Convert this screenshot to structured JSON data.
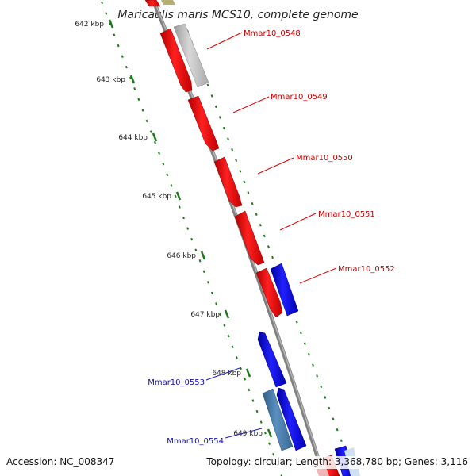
{
  "title": "Maricaulis maris MCS10, complete genome",
  "kbp_ticks": [
    "642 kbp",
    "643 kbp",
    "644 kbp",
    "645 kbp",
    "646 kbp",
    "647 kbp",
    "648 kbp",
    "649 kbp"
  ],
  "genes": [
    {
      "label": "Mmar10_0548",
      "strand": "+",
      "color": "#ff0000"
    },
    {
      "label": "Mmar10_0549",
      "strand": "+",
      "color": "#ff0000"
    },
    {
      "label": "Mmar10_0550",
      "strand": "+",
      "color": "#ff0000"
    },
    {
      "label": "Mmar10_0551",
      "strand": "+",
      "color": "#ff0000"
    },
    {
      "label": "Mmar10_0552",
      "strand": "+",
      "color": "#ff0000"
    },
    {
      "label": "Mmar10_0553",
      "strand": "-",
      "color": "#0000ff"
    },
    {
      "label": "Mmar10_0554",
      "strand": "-",
      "color": "#0000ff"
    }
  ],
  "colors": {
    "forward_cds": "#ff0000",
    "reverse_cds": "#0000ff",
    "other_feature": "#bdbdbd",
    "alt_feature": "#4682b4",
    "backbone": "#808080",
    "tick": "#1a7a1a"
  },
  "footer": {
    "accession": "Accession: NC_008347",
    "topology": "Topology: circular; Length: 3,368,780 bp; Genes: 3,116"
  }
}
